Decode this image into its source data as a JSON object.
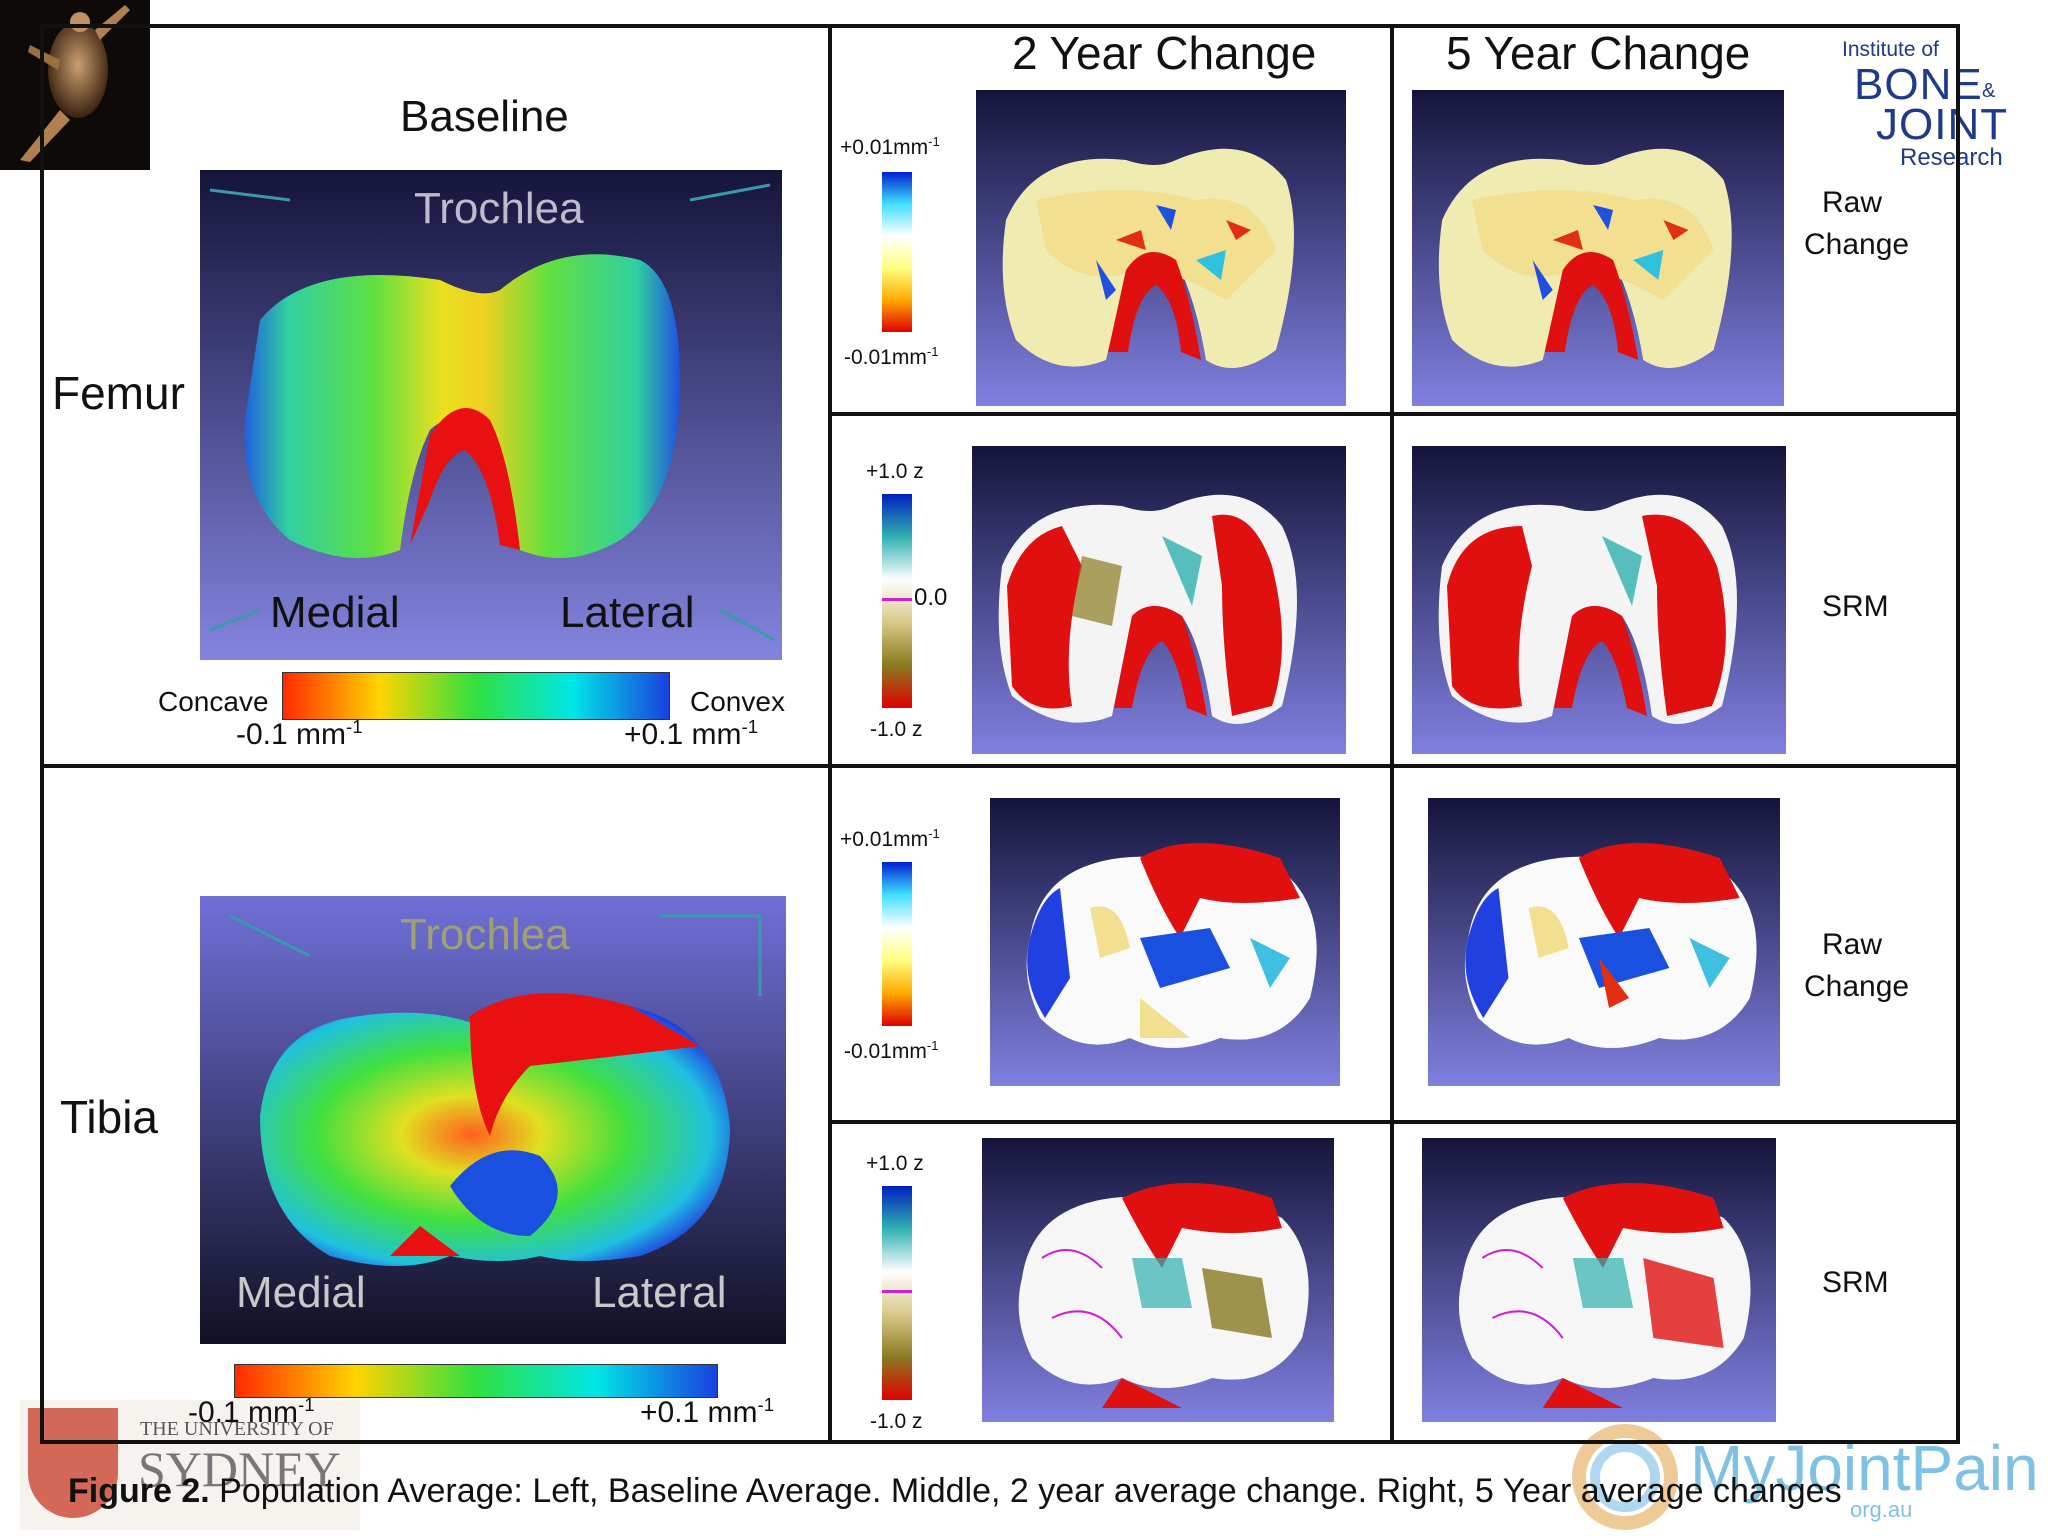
{
  "header": {
    "col_baseline": "Baseline",
    "col_2yr": "2 Year Change",
    "col_5yr": "5 Year Change"
  },
  "rows": {
    "femur": "Femur",
    "tibia": "Tibia"
  },
  "femur_baseline": {
    "top_label": "Trochlea",
    "medial": "Medial",
    "lateral": "Lateral",
    "scale": {
      "left_word": "Concave",
      "right_word": "Convex",
      "min_value": "-0.1 mm",
      "max_value": "+0.1 mm",
      "unit_exp": "-1"
    }
  },
  "tibia_baseline": {
    "top_label": "Trochlea",
    "medial": "Medial",
    "lateral": "Lateral",
    "scale": {
      "min_value": "-0.1 mm",
      "max_value": "+0.1 mm",
      "unit_exp": "-1"
    }
  },
  "raw_change_scale": {
    "max": "+0.01mm",
    "min": "-0.01mm",
    "unit_exp": "-1"
  },
  "srm_scale": {
    "max": "+1.0 z",
    "mid": "0.0",
    "min": "-1.0 z"
  },
  "row_labels": {
    "raw_line1": "Raw",
    "raw_line2": "Change",
    "srm": "SRM"
  },
  "logos": {
    "ibjr_line1": "Institute of",
    "ibjr_bone": "BONE",
    "ibjr_amp": "&",
    "ibjr_joint": "JOINT",
    "ibjr_research": "Research",
    "sydney_line1": "THE UNIVERSITY OF",
    "sydney_line2": "SYDNEY",
    "myjointpain": "MyJointPain",
    "myjointpain_sub": "org.au"
  },
  "caption": {
    "prefix": "Figure 2.",
    "text": " Population Average: Left, Baseline Average. Middle, 2 year average change. Right, 5 Year average changes"
  },
  "colors": {
    "viewport_top": "#1a1a40",
    "viewport_bottom": "#7d7dda",
    "baseline_gradient": [
      "#ff2a00",
      "#ffd400",
      "#30e040",
      "#00e6e6",
      "#1a40e0"
    ],
    "raw_gradient": [
      "#e00000",
      "#ffaa00",
      "#ffff80",
      "#ffffff",
      "#40e0ff",
      "#0020d0"
    ],
    "srm_gradient": [
      "#e00000",
      "#8a7a20",
      "#d8c888",
      "#ffffff",
      "#30b0b0",
      "#0020c0"
    ]
  }
}
